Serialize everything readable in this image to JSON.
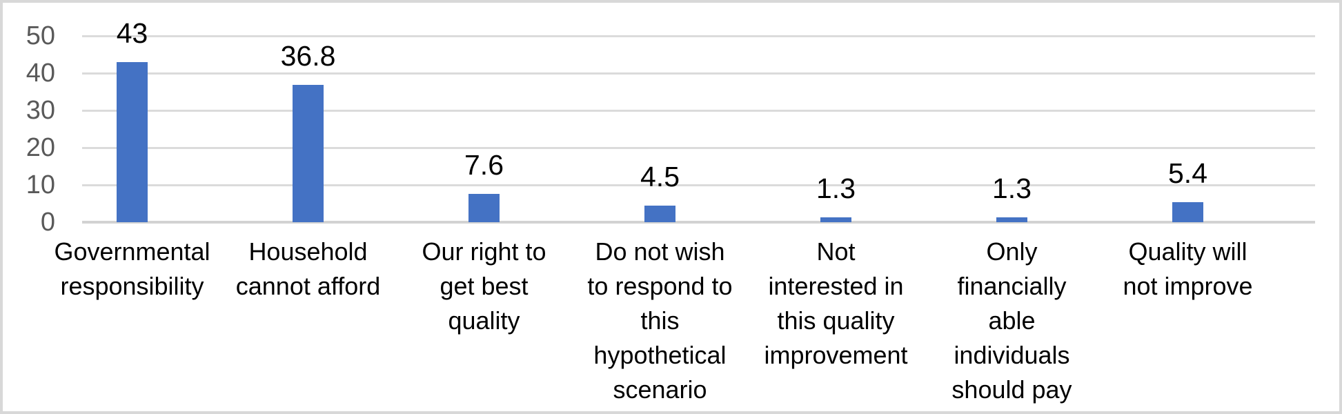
{
  "figure": {
    "background": "#FFFFFF",
    "frame_border_color": "#D8D8D8",
    "bar_color": "#4472C4",
    "gridline_color": "#DBDBDB",
    "axis_line_color": "#D2D2D2",
    "ytick_text_color": "#595959",
    "label_text_color": "#000000"
  },
  "chart_data": {
    "type": "bar",
    "title": "",
    "xlabel": "",
    "ylabel": "",
    "legend": "none",
    "grid": "horizontal",
    "ylim": [
      0,
      50
    ],
    "yticks": [
      "0",
      "10",
      "20",
      "30",
      "40",
      "50"
    ],
    "categories": [
      "Governmental responsibility",
      "Household cannot afford",
      "Our right to get best quality",
      "Do not wish to respond to this hypothetical scenario",
      "Not interested in this quality improvement",
      "Only financially able individuals should pay",
      "Quality will not improve"
    ],
    "display_labels": [
      "Governmental\nresponsibility",
      "Household\ncannot afford",
      "Our right to\nget best\nquality",
      "Do not wish\nto respond to\nthis\nhypothetical\nscenario",
      "Not\ninterested in\nthis quality\nimprovement",
      "Only\nfinancially\nable\nindividuals\nshould pay",
      "Quality will\nnot improve"
    ],
    "values": [
      43,
      36.8,
      7.6,
      4.5,
      1.3,
      1.3,
      5.4
    ],
    "data_labels": [
      "43",
      "36.8",
      "7.6",
      "4.5",
      "1.3",
      "1.3",
      "5.4"
    ]
  }
}
